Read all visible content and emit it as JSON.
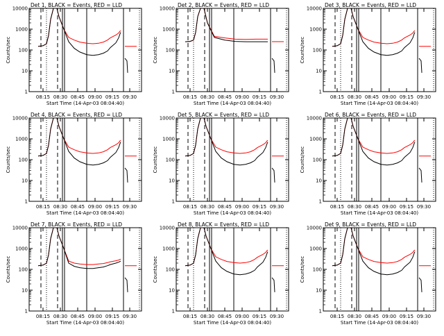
{
  "colors": {
    "events": "#000000",
    "lld": "#ff0000",
    "background": "#ffffff",
    "axes": "#000000"
  },
  "x_tick_labels": [
    "08:15",
    "08:30",
    "08:45",
    "09:00",
    "09:15",
    "09:30"
  ],
  "y_tick_labels": [
    "1",
    "10",
    "100",
    "1000",
    "10000"
  ],
  "ylabel": "Counts/sec",
  "xlabel": "Start Time (14-Apr-03 08:04:40)",
  "chart_data": [
    {
      "type": "line",
      "title": "Det 1, BLACK = Events, RED = LLD",
      "ylim": [
        1,
        10000
      ],
      "yscale": "log",
      "xticks": [
        "08:15",
        "08:30",
        "08:45",
        "09:00",
        "09:15",
        "09:30"
      ],
      "series": [
        {
          "name": "Events",
          "color": "#000000",
          "x": [
            8.18,
            8.25,
            8.3,
            8.33,
            8.36,
            8.4,
            8.42,
            8.45,
            8.48,
            8.55,
            8.62,
            8.7,
            8.78,
            8.88,
            8.97,
            9.05,
            9.12,
            9.18,
            9.22,
            9.3,
            9.34,
            9.36,
            9.37
          ],
          "y": [
            150,
            160,
            200,
            500,
            3000,
            10000,
            10000,
            10000,
            4000,
            1000,
            250,
            120,
            80,
            60,
            55,
            60,
            70,
            90,
            130,
            220,
            380,
            600,
            700
          ]
        },
        {
          "name": "LLD",
          "color": "#ff0000",
          "x": [
            8.18,
            8.25,
            8.3,
            8.33,
            8.36,
            8.4,
            8.42,
            8.45,
            8.48,
            8.55,
            8.62,
            8.7,
            8.78,
            8.88,
            8.97,
            9.05,
            9.12,
            9.18,
            9.22,
            9.3,
            9.34,
            9.36,
            9.37
          ],
          "y": [
            150,
            160,
            200,
            500,
            3000,
            10000,
            10000,
            10000,
            4000,
            1000,
            400,
            300,
            240,
            210,
            200,
            210,
            240,
            300,
            380,
            520,
            650,
            800,
            850
          ]
        }
      ]
    },
    {
      "type": "line",
      "title": "Det 2, BLACK = Events, RED = LLD",
      "ylim": [
        1,
        10000
      ],
      "yscale": "log",
      "xticks": [
        "08:15",
        "08:30",
        "08:45",
        "09:00",
        "09:15",
        "09:30"
      ],
      "series": [
        {
          "name": "Events",
          "color": "#000000",
          "x": [
            8.18,
            8.25,
            8.3,
            8.33,
            8.36,
            8.4,
            8.42,
            8.45,
            8.5,
            8.6,
            8.75,
            8.9,
            9.05,
            9.2,
            9.3,
            9.37
          ],
          "y": [
            250,
            260,
            300,
            700,
            4000,
            10000,
            10000,
            10000,
            2000,
            400,
            300,
            260,
            250,
            250,
            250,
            250
          ]
        },
        {
          "name": "LLD",
          "color": "#ff0000",
          "x": [
            8.18,
            8.25,
            8.3,
            8.33,
            8.36,
            8.4,
            8.42,
            8.45,
            8.5,
            8.6,
            8.75,
            8.9,
            9.05,
            9.2,
            9.3,
            9.37
          ],
          "y": [
            250,
            260,
            300,
            700,
            4000,
            10000,
            10000,
            10000,
            2000,
            450,
            380,
            330,
            320,
            330,
            330,
            330
          ]
        }
      ]
    },
    {
      "type": "line",
      "title": "Det 3, BLACK = Events, RED = LLD",
      "ylim": [
        1,
        10000
      ],
      "yscale": "log",
      "xticks": [
        "08:15",
        "08:30",
        "08:45",
        "09:00",
        "09:15",
        "09:30"
      ],
      "series": [
        {
          "name": "Events",
          "color": "#000000",
          "x": [
            8.18,
            8.25,
            8.3,
            8.33,
            8.36,
            8.4,
            8.42,
            8.45,
            8.48,
            8.55,
            8.62,
            8.7,
            8.78,
            8.88,
            8.97,
            9.05,
            9.12,
            9.18,
            9.22,
            9.3,
            9.34,
            9.36,
            9.37
          ],
          "y": [
            150,
            160,
            200,
            500,
            3000,
            10000,
            10000,
            10000,
            4000,
            1000,
            250,
            120,
            80,
            60,
            55,
            60,
            70,
            90,
            130,
            220,
            380,
            600,
            700
          ]
        },
        {
          "name": "LLD",
          "color": "#ff0000",
          "x": [
            8.18,
            8.25,
            8.3,
            8.33,
            8.36,
            8.4,
            8.42,
            8.45,
            8.48,
            8.55,
            8.62,
            8.7,
            8.78,
            8.88,
            8.97,
            9.05,
            9.12,
            9.18,
            9.22,
            9.3,
            9.34,
            9.36,
            9.37
          ],
          "y": [
            150,
            160,
            200,
            500,
            3000,
            10000,
            10000,
            10000,
            4000,
            1000,
            400,
            300,
            240,
            210,
            200,
            210,
            240,
            300,
            380,
            520,
            650,
            800,
            850
          ]
        }
      ]
    },
    {
      "type": "line",
      "title": "Det 4, BLACK = Events, RED = LLD",
      "ylim": [
        1,
        10000
      ],
      "yscale": "log",
      "xticks": [
        "08:15",
        "08:30",
        "08:45",
        "09:00",
        "09:15",
        "09:30"
      ],
      "series": [
        {
          "name": "Events",
          "color": "#000000",
          "x": [
            8.18,
            8.25,
            8.3,
            8.33,
            8.36,
            8.4,
            8.42,
            8.45,
            8.48,
            8.55,
            8.62,
            8.7,
            8.78,
            8.88,
            8.97,
            9.05,
            9.12,
            9.18,
            9.22,
            9.3,
            9.34,
            9.36,
            9.37
          ],
          "y": [
            150,
            160,
            200,
            500,
            3000,
            10000,
            10000,
            10000,
            4000,
            1000,
            250,
            120,
            80,
            60,
            55,
            60,
            70,
            90,
            130,
            220,
            380,
            600,
            700
          ]
        },
        {
          "name": "LLD",
          "color": "#ff0000",
          "x": [
            8.18,
            8.25,
            8.3,
            8.33,
            8.36,
            8.4,
            8.42,
            8.45,
            8.48,
            8.55,
            8.62,
            8.7,
            8.78,
            8.88,
            8.97,
            9.05,
            9.12,
            9.18,
            9.22,
            9.3,
            9.34,
            9.36,
            9.37
          ],
          "y": [
            150,
            160,
            200,
            500,
            3000,
            10000,
            10000,
            10000,
            4000,
            1000,
            400,
            300,
            240,
            210,
            200,
            210,
            240,
            300,
            380,
            520,
            650,
            800,
            850
          ]
        }
      ]
    },
    {
      "type": "line",
      "title": "Det 5, BLACK = Events, RED = LLD",
      "ylim": [
        1,
        10000
      ],
      "yscale": "log",
      "xticks": [
        "08:15",
        "08:30",
        "08:45",
        "09:00",
        "09:15",
        "09:30"
      ],
      "series": [
        {
          "name": "Events",
          "color": "#000000",
          "x": [
            8.18,
            8.25,
            8.3,
            8.33,
            8.36,
            8.4,
            8.42,
            8.45,
            8.48,
            8.55,
            8.62,
            8.7,
            8.78,
            8.88,
            8.97,
            9.05,
            9.12,
            9.18,
            9.22,
            9.3,
            9.34,
            9.36,
            9.37
          ],
          "y": [
            150,
            160,
            200,
            500,
            3000,
            10000,
            10000,
            10000,
            4000,
            1000,
            250,
            120,
            80,
            60,
            55,
            60,
            70,
            90,
            130,
            220,
            380,
            600,
            700
          ]
        },
        {
          "name": "LLD",
          "color": "#ff0000",
          "x": [
            8.18,
            8.25,
            8.3,
            8.33,
            8.36,
            8.4,
            8.42,
            8.45,
            8.48,
            8.55,
            8.62,
            8.7,
            8.78,
            8.88,
            8.97,
            9.05,
            9.12,
            9.18,
            9.22,
            9.3,
            9.34,
            9.36,
            9.37
          ],
          "y": [
            150,
            160,
            200,
            500,
            3000,
            10000,
            10000,
            10000,
            4000,
            1000,
            400,
            300,
            240,
            210,
            200,
            210,
            240,
            300,
            380,
            520,
            650,
            800,
            850
          ]
        }
      ]
    },
    {
      "type": "line",
      "title": "Det 6, BLACK = Events, RED = LLD",
      "ylim": [
        1,
        10000
      ],
      "yscale": "log",
      "xticks": [
        "08:15",
        "08:30",
        "08:45",
        "09:00",
        "09:15",
        "09:30"
      ],
      "series": [
        {
          "name": "Events",
          "color": "#000000",
          "x": [
            8.18,
            8.25,
            8.3,
            8.33,
            8.36,
            8.4,
            8.42,
            8.45,
            8.48,
            8.55,
            8.62,
            8.7,
            8.78,
            8.88,
            8.97,
            9.05,
            9.12,
            9.18,
            9.22,
            9.3,
            9.34,
            9.36,
            9.37
          ],
          "y": [
            150,
            160,
            200,
            500,
            3000,
            10000,
            10000,
            10000,
            4000,
            1000,
            250,
            120,
            80,
            60,
            55,
            60,
            70,
            90,
            130,
            220,
            380,
            600,
            700
          ]
        },
        {
          "name": "LLD",
          "color": "#ff0000",
          "x": [
            8.18,
            8.25,
            8.3,
            8.33,
            8.36,
            8.4,
            8.42,
            8.45,
            8.48,
            8.55,
            8.62,
            8.7,
            8.78,
            8.88,
            8.97,
            9.05,
            9.12,
            9.18,
            9.22,
            9.3,
            9.34,
            9.36,
            9.37
          ],
          "y": [
            150,
            160,
            200,
            500,
            3000,
            10000,
            10000,
            10000,
            4000,
            1000,
            400,
            300,
            240,
            210,
            200,
            210,
            240,
            300,
            380,
            520,
            650,
            800,
            850
          ]
        }
      ]
    },
    {
      "type": "line",
      "title": "Det 7, BLACK = Events, RED = LLD",
      "ylim": [
        1,
        10000
      ],
      "yscale": "log",
      "xticks": [
        "08:15",
        "08:30",
        "08:45",
        "09:00",
        "09:15",
        "09:30"
      ],
      "series": [
        {
          "name": "Events",
          "color": "#000000",
          "x": [
            8.18,
            8.25,
            8.3,
            8.33,
            8.36,
            8.4,
            8.42,
            8.45,
            8.48,
            8.55,
            8.62,
            8.7,
            8.78,
            8.88,
            8.97,
            9.05,
            9.12,
            9.18,
            9.22,
            9.3,
            9.34,
            9.36,
            9.37
          ],
          "y": [
            150,
            160,
            200,
            500,
            3000,
            10000,
            10000,
            10000,
            4000,
            1000,
            200,
            140,
            120,
            110,
            110,
            120,
            130,
            150,
            170,
            200,
            220,
            240,
            250
          ]
        },
        {
          "name": "LLD",
          "color": "#ff0000",
          "x": [
            8.18,
            8.25,
            8.3,
            8.33,
            8.36,
            8.4,
            8.42,
            8.45,
            8.48,
            8.55,
            8.62,
            8.7,
            8.78,
            8.88,
            8.97,
            9.05,
            9.12,
            9.18,
            9.22,
            9.3,
            9.34,
            9.36,
            9.37
          ],
          "y": [
            150,
            160,
            200,
            500,
            3000,
            10000,
            10000,
            10000,
            4000,
            1000,
            250,
            200,
            180,
            170,
            170,
            180,
            190,
            210,
            230,
            260,
            280,
            300,
            310
          ]
        }
      ]
    },
    {
      "type": "line",
      "title": "Det 8, BLACK = Events, RED = LLD",
      "ylim": [
        1,
        10000
      ],
      "yscale": "log",
      "xticks": [
        "08:15",
        "08:30",
        "08:45",
        "09:00",
        "09:15",
        "09:30"
      ],
      "series": [
        {
          "name": "Events",
          "color": "#000000",
          "x": [
            8.18,
            8.25,
            8.3,
            8.33,
            8.36,
            8.4,
            8.42,
            8.45,
            8.48,
            8.55,
            8.62,
            8.7,
            8.78,
            8.88,
            8.97,
            9.05,
            9.12,
            9.18,
            9.22,
            9.3,
            9.34,
            9.36,
            9.37
          ],
          "y": [
            150,
            160,
            200,
            500,
            3000,
            10000,
            10000,
            10000,
            4000,
            1000,
            250,
            120,
            80,
            60,
            55,
            60,
            70,
            90,
            130,
            220,
            380,
            600,
            700
          ]
        },
        {
          "name": "LLD",
          "color": "#ff0000",
          "x": [
            8.18,
            8.25,
            8.3,
            8.33,
            8.36,
            8.4,
            8.42,
            8.45,
            8.48,
            8.55,
            8.62,
            8.7,
            8.78,
            8.88,
            8.97,
            9.05,
            9.12,
            9.18,
            9.22,
            9.3,
            9.34,
            9.36,
            9.37
          ],
          "y": [
            150,
            160,
            200,
            500,
            3000,
            10000,
            10000,
            10000,
            4000,
            1000,
            400,
            300,
            240,
            210,
            200,
            210,
            240,
            300,
            380,
            520,
            650,
            800,
            850
          ]
        }
      ]
    },
    {
      "type": "line",
      "title": "Det 9, BLACK = Events, RED = LLD",
      "ylim": [
        1,
        10000
      ],
      "yscale": "log",
      "xticks": [
        "08:15",
        "08:30",
        "08:45",
        "09:00",
        "09:15",
        "09:30"
      ],
      "series": [
        {
          "name": "Events",
          "color": "#000000",
          "x": [
            8.18,
            8.25,
            8.3,
            8.33,
            8.36,
            8.4,
            8.42,
            8.45,
            8.48,
            8.55,
            8.62,
            8.7,
            8.78,
            8.88,
            8.97,
            9.05,
            9.12,
            9.18,
            9.22,
            9.3,
            9.34,
            9.36,
            9.37
          ],
          "y": [
            150,
            160,
            200,
            500,
            3000,
            10000,
            10000,
            10000,
            4000,
            1000,
            250,
            120,
            80,
            60,
            55,
            60,
            70,
            90,
            130,
            220,
            380,
            600,
            700
          ]
        },
        {
          "name": "LLD",
          "color": "#ff0000",
          "x": [
            8.18,
            8.25,
            8.3,
            8.33,
            8.36,
            8.4,
            8.42,
            8.45,
            8.48,
            8.55,
            8.62,
            8.7,
            8.78,
            8.88,
            8.97,
            9.05,
            9.12,
            9.18,
            9.22,
            9.3,
            9.34,
            9.36,
            9.37
          ],
          "y": [
            150,
            160,
            200,
            500,
            3000,
            10000,
            10000,
            10000,
            4000,
            1000,
            400,
            300,
            240,
            210,
            200,
            210,
            240,
            300,
            380,
            520,
            650,
            800,
            850
          ]
        }
      ]
    }
  ]
}
